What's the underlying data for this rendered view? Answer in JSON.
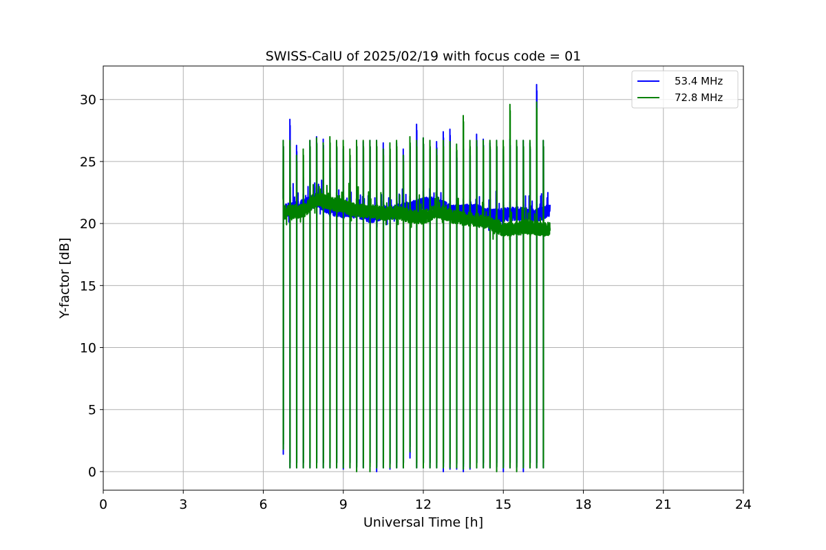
{
  "chart_data": {
    "type": "line",
    "title": "SWISS-CalU of 2025/02/19 with focus code = 01",
    "xlabel": "Universal Time [h]",
    "ylabel": "Y-factor [dB]",
    "xlim": [
      0,
      24
    ],
    "ylim": [
      -1.5,
      32.7
    ],
    "xticks": [
      0,
      3,
      6,
      9,
      12,
      15,
      18,
      21,
      24
    ],
    "yticks": [
      0,
      5,
      10,
      15,
      20,
      25,
      30
    ],
    "grid": true,
    "legend_position": "top-right",
    "cal_pulse_times": [
      6.75,
      7.0,
      7.25,
      7.5,
      7.75,
      8.0,
      8.25,
      8.5,
      8.75,
      9.0,
      9.25,
      9.5,
      9.75,
      10.0,
      10.25,
      10.5,
      10.75,
      11.0,
      11.25,
      11.5,
      11.75,
      12.0,
      12.25,
      12.5,
      12.75,
      13.0,
      13.25,
      13.5,
      13.75,
      14.0,
      14.25,
      14.5,
      14.75,
      15.0,
      15.25,
      15.5,
      15.75,
      16.0,
      16.25,
      16.5
    ],
    "series": [
      {
        "name": "53.4 MHz",
        "color": "#0000ff",
        "x": [
          6.75,
          7.5,
          8.0,
          8.5,
          9.0,
          9.5,
          10.0,
          10.5,
          11.0,
          11.5,
          12.0,
          12.5,
          13.0,
          13.5,
          14.0,
          14.5,
          15.0,
          15.5,
          16.0,
          16.5,
          16.75
        ],
        "y": [
          21.0,
          21.4,
          21.9,
          21.2,
          21.0,
          21.0,
          20.6,
          20.8,
          21.0,
          21.2,
          21.6,
          21.6,
          21.0,
          21.0,
          21.0,
          20.6,
          20.7,
          20.8,
          20.7,
          20.8,
          21.1
        ],
        "pulse_peaks": [
          26.7,
          28.4,
          26.3,
          24.2,
          26.7,
          27.0,
          26.8,
          25.0,
          26.6,
          26.0,
          25.0,
          26.7,
          26.6,
          26.7,
          26.7,
          26.5,
          25.5,
          26.5,
          26.0,
          26.7,
          28.0,
          26.9,
          26.0,
          26.6,
          27.4,
          27.6,
          25.8,
          26.5,
          26.0,
          27.2,
          26.8,
          26.5,
          26.7,
          26.0,
          26.8,
          26.7,
          26.7,
          26.5,
          31.2,
          26.7
        ],
        "pulse_lows": [
          1.4,
          0.3,
          0.3,
          0.3,
          0.3,
          0.3,
          0.3,
          0.3,
          0.3,
          0.2,
          0.3,
          0.3,
          0.3,
          0.3,
          0.0,
          0.3,
          0.2,
          0.3,
          0.3,
          1.1,
          0.3,
          0.3,
          0.3,
          0.3,
          0.0,
          0.2,
          0.2,
          0.0,
          0.2,
          0.3,
          0.3,
          0.3,
          0.3,
          0.0,
          0.3,
          0.3,
          0.0,
          0.3,
          0.3,
          0.3
        ]
      },
      {
        "name": "72.8 MHz",
        "color": "#008000",
        "x": [
          6.75,
          7.5,
          8.0,
          8.5,
          9.0,
          9.5,
          10.0,
          10.5,
          11.0,
          11.5,
          12.0,
          12.5,
          13.0,
          13.5,
          14.0,
          14.5,
          15.0,
          15.5,
          16.0,
          16.5,
          16.75
        ],
        "y": [
          20.9,
          21.0,
          22.0,
          21.6,
          21.4,
          21.0,
          21.0,
          20.8,
          20.9,
          20.6,
          20.5,
          21.0,
          20.6,
          20.4,
          20.3,
          20.0,
          19.5,
          19.6,
          19.7,
          19.5,
          19.6
        ],
        "pulse_peaks": [
          26.7,
          26.7,
          25.5,
          26.0,
          26.7,
          26.9,
          26.5,
          27.0,
          26.7,
          26.7,
          26.0,
          26.7,
          26.7,
          26.7,
          26.7,
          26.0,
          26.5,
          26.7,
          25.5,
          27.0,
          26.7,
          26.9,
          26.7,
          26.0,
          26.7,
          26.6,
          26.4,
          28.7,
          26.7,
          26.7,
          26.7,
          26.7,
          26.7,
          26.7,
          29.6,
          26.7,
          26.7,
          26.7,
          29.8,
          26.7
        ],
        "pulse_lows": [
          1.8,
          0.3,
          0.3,
          0.3,
          0.3,
          0.3,
          0.3,
          0.3,
          0.3,
          0.3,
          0.3,
          0.0,
          0.3,
          0.0,
          0.3,
          0.3,
          0.3,
          0.3,
          0.3,
          1.6,
          0.3,
          0.3,
          0.3,
          0.3,
          0.3,
          0.3,
          0.3,
          0.2,
          0.3,
          0.3,
          0.3,
          0.3,
          0.0,
          0.3,
          0.3,
          0.0,
          0.3,
          0.3,
          0.3,
          0.3
        ]
      }
    ]
  }
}
